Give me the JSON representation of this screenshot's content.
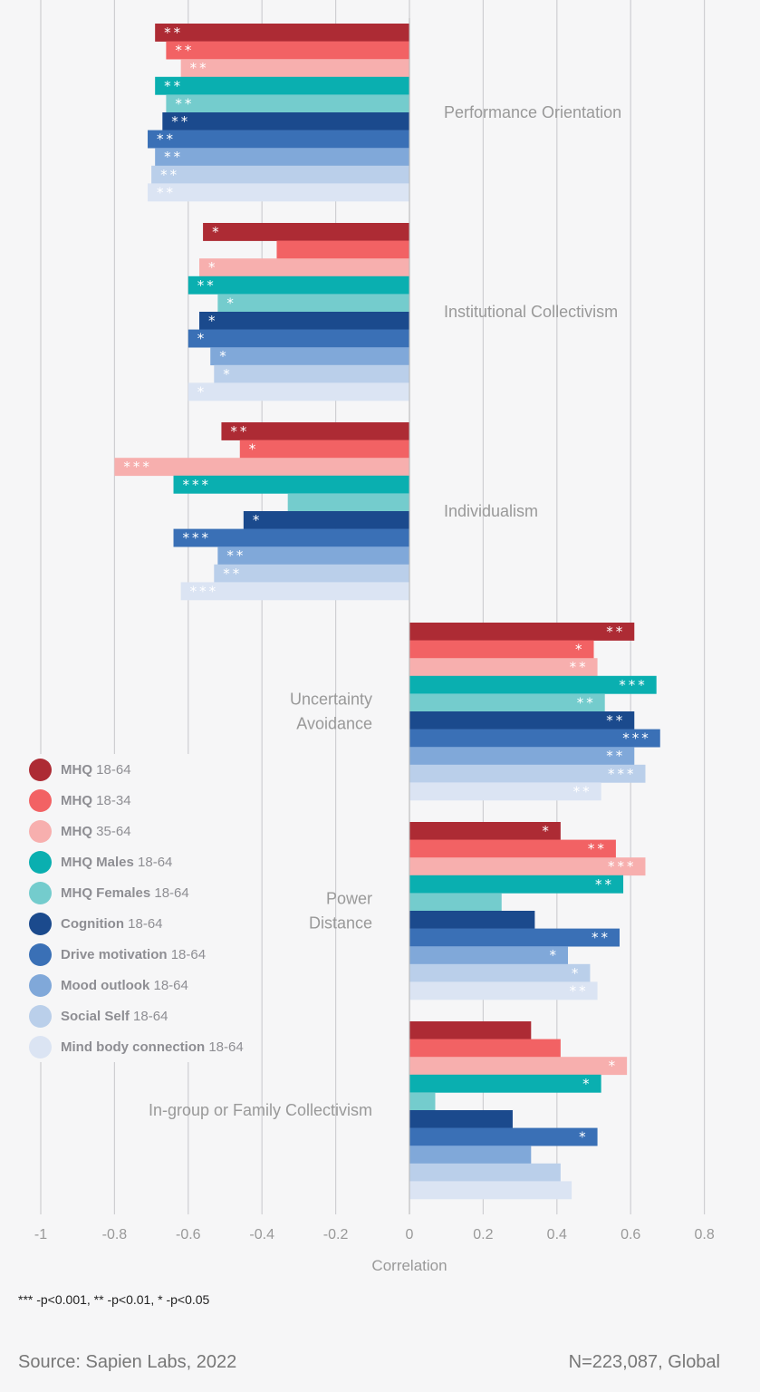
{
  "chart_data": {
    "type": "bar",
    "orientation": "horizontal",
    "xlabel": "Correlation",
    "xlim": [
      -1,
      0.8
    ],
    "xticks": [
      "-1",
      "-0.8",
      "-0.6",
      "-0.4",
      "-0.2",
      "0",
      "0.2",
      "0.4",
      "0.6",
      "0.8"
    ],
    "grid": true,
    "legend_position": "left-middle",
    "categories": [
      "Performance Orientation",
      "Institutional Collectivism",
      "Individualism",
      "Uncertainty Avoidance",
      "Power Distance",
      "In-group or Family Collectivism"
    ],
    "category_label_lines": [
      [
        "Performance Orientation"
      ],
      [
        "Institutional Collectivism"
      ],
      [
        "Individualism"
      ],
      [
        "Uncertainty",
        "Avoidance"
      ],
      [
        "Power",
        "Distance"
      ],
      [
        "In-group or Family Collectivism"
      ]
    ],
    "series": [
      {
        "name": "MHQ 18-64",
        "bold": "MHQ",
        "rest": " 18-64",
        "color": "#ad2b34",
        "values": [
          -0.69,
          -0.56,
          -0.51,
          0.61,
          0.41,
          0.33
        ],
        "stars": [
          "**",
          "*",
          "**",
          "**",
          "*",
          ""
        ]
      },
      {
        "name": "MHQ 18-34",
        "bold": "MHQ",
        "rest": " 18-34",
        "color": "#f26264",
        "values": [
          -0.66,
          -0.36,
          -0.46,
          0.5,
          0.56,
          0.41
        ],
        "stars": [
          "**",
          "",
          "*",
          "*",
          "**",
          ""
        ]
      },
      {
        "name": "MHQ 35-64",
        "bold": "MHQ",
        "rest": " 35-64",
        "color": "#f7afae",
        "values": [
          -0.62,
          -0.57,
          -0.8,
          0.51,
          0.64,
          0.59
        ],
        "stars": [
          "**",
          "*",
          "***",
          "**",
          "***",
          "*"
        ]
      },
      {
        "name": "MHQ Males 18-64",
        "bold": "MHQ Males",
        "rest": " 18-64",
        "color": "#0aafb0",
        "values": [
          -0.69,
          -0.6,
          -0.64,
          0.67,
          0.58,
          0.52
        ],
        "stars": [
          "**",
          "**",
          "***",
          "***",
          "**",
          "*"
        ]
      },
      {
        "name": "MHQ Females 18-64",
        "bold": "MHQ Females",
        "rest": " 18-64",
        "color": "#74cccd",
        "values": [
          -0.66,
          -0.52,
          -0.33,
          0.53,
          0.25,
          0.07
        ],
        "stars": [
          "**",
          "*",
          "",
          "**",
          "",
          ""
        ]
      },
      {
        "name": "Cognition 18-64",
        "bold": "Cognition",
        "rest": " 18-64",
        "color": "#1b4a8d",
        "values": [
          -0.67,
          -0.57,
          -0.45,
          0.61,
          0.34,
          0.28
        ],
        "stars": [
          "**",
          "*",
          "*",
          "**",
          "",
          ""
        ]
      },
      {
        "name": "Drive motivation 18-64",
        "bold": "Drive motivation",
        "rest": " 18-64",
        "color": "#3a70b6",
        "values": [
          -0.71,
          -0.6,
          -0.64,
          0.68,
          0.57,
          0.51
        ],
        "stars": [
          "**",
          "*",
          "***",
          "***",
          "**",
          "*"
        ]
      },
      {
        "name": "Mood outlook 18-64",
        "bold": "Mood outlook",
        "rest": " 18-64",
        "color": "#80a8d9",
        "values": [
          -0.69,
          -0.54,
          -0.52,
          0.61,
          0.43,
          0.33
        ],
        "stars": [
          "**",
          "*",
          "**",
          "**",
          "*",
          ""
        ]
      },
      {
        "name": "Social Self 18-64",
        "bold": "Social Self",
        "rest": " 18-64",
        "color": "#bacfea",
        "values": [
          -0.7,
          -0.53,
          -0.53,
          0.64,
          0.49,
          0.41
        ],
        "stars": [
          "**",
          "*",
          "**",
          "***",
          "*",
          ""
        ]
      },
      {
        "name": "Mind body connection 18-64",
        "bold": "Mind body connection",
        "rest": " 18-64",
        "color": "#dbe4f3",
        "values": [
          -0.71,
          -0.6,
          -0.62,
          0.52,
          0.51,
          0.44
        ],
        "stars": [
          "**",
          "*",
          "***",
          "**",
          "**",
          ""
        ]
      }
    ]
  },
  "footnote": "*** -p<0.001, ** -p<0.01, * -p<0.05",
  "source": "Source: Sapien Labs, 2022",
  "sample": "N=223,087, Global"
}
